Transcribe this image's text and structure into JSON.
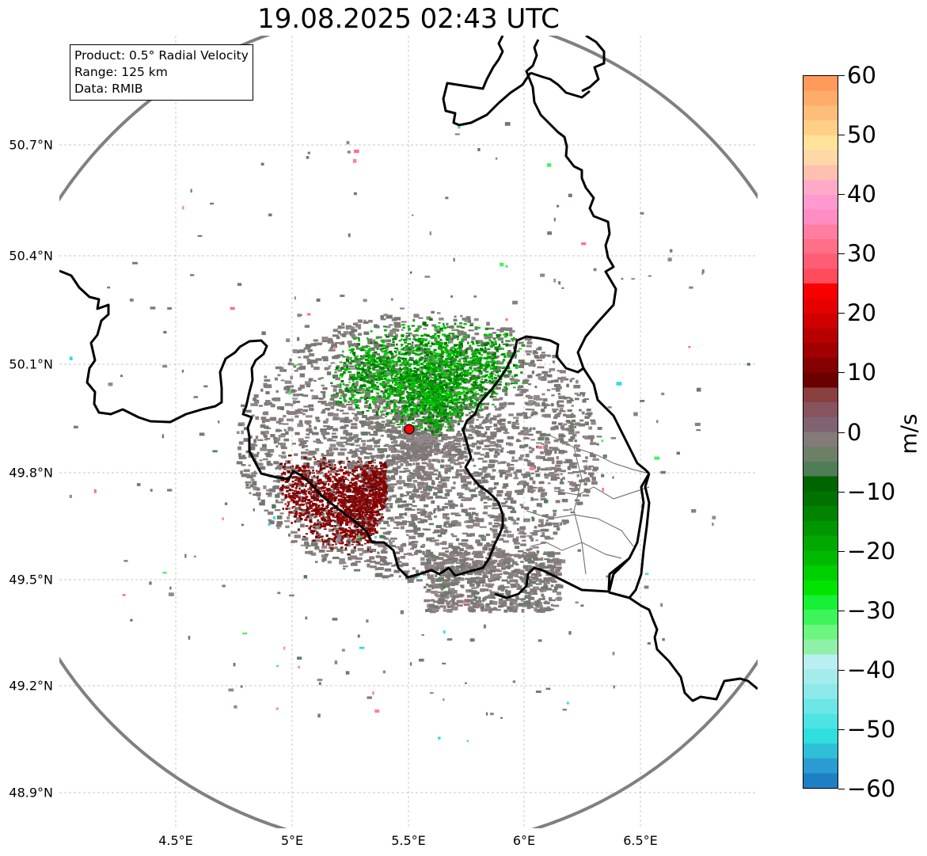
{
  "title": "19.08.2025 02:43 UTC",
  "info": {
    "product": "Product: 0.5° Radial Velocity",
    "range": "Range: 125 km",
    "source": "Data: RMIB"
  },
  "axes": {
    "lat_labels": [
      "50.7°N",
      "50.4°N",
      "50.1°N",
      "49.8°N",
      "49.5°N",
      "49.2°N",
      "48.9°N"
    ],
    "lon_labels": [
      "4.5°E",
      "5°E",
      "5.5°E",
      "6°E",
      "6.5°E"
    ],
    "lon_range": [
      4.0,
      7.0
    ],
    "lat_range": [
      48.8,
      51.0
    ]
  },
  "radar_site": {
    "lon": 5.505,
    "lat": 49.914,
    "color": "#ff0000"
  },
  "colorbar": {
    "unit": "m/s",
    "ticks": [
      "60",
      "50",
      "40",
      "30",
      "20",
      "10",
      "0",
      "−10",
      "−20",
      "−30",
      "−40",
      "−50",
      "−60"
    ],
    "min": -60,
    "max": 60,
    "colors": [
      "#1f7fc4",
      "#2b9cd1",
      "#2fbfd8",
      "#2fdede",
      "#4ee3e3",
      "#6ce6e6",
      "#8de9e9",
      "#a4ecec",
      "#b8eff0",
      "#90f0a8",
      "#6cf57f",
      "#3df55a",
      "#17f034",
      "#00e400",
      "#00cf00",
      "#00ba00",
      "#00a800",
      "#009600",
      "#008400",
      "#007200",
      "#006400",
      "#4f7d56",
      "#6c8068",
      "#847a7a",
      "#7f6372",
      "#87545e",
      "#8a4040",
      "#6b0000",
      "#850000",
      "#a00000",
      "#b80000",
      "#d00000",
      "#e60000",
      "#f80000",
      "#ff4b5c",
      "#ff5d73",
      "#ff6f88",
      "#ff7ea0",
      "#ff8cc2",
      "#ff9ad0",
      "#ffabc8",
      "#ffc0b0",
      "#ffd8a8",
      "#ffe39a",
      "#ffcf88",
      "#ffbd7a",
      "#ffab6a",
      "#ff9a5b"
    ]
  }
}
